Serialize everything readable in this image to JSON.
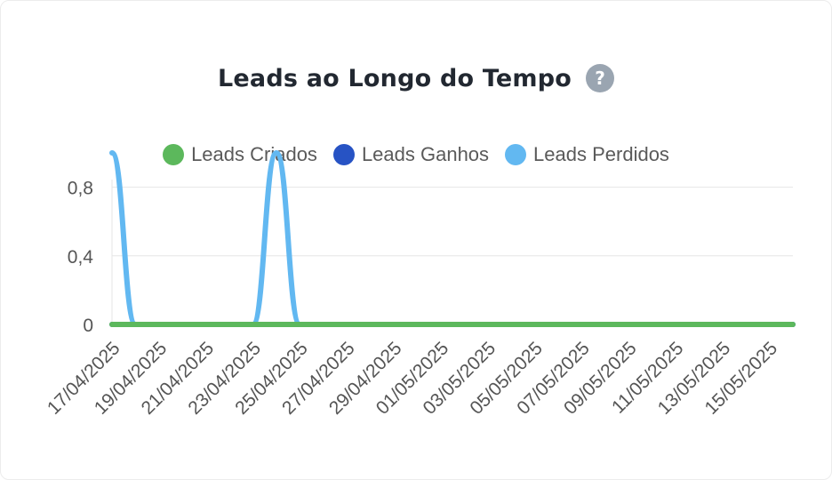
{
  "header": {
    "title": "Leads ao Longo do Tempo",
    "help_icon_label": "?"
  },
  "colors": {
    "leads_criados": "#5cb85c",
    "leads_ganhos": "#2753c4",
    "leads_perdidos": "#62b8f1",
    "grid": "#e6e6e6",
    "axis_text": "#555555"
  },
  "chart_data": {
    "type": "line",
    "title": "Leads ao Longo do Tempo",
    "xlabel": "",
    "ylabel": "",
    "ylim": [
      0,
      1
    ],
    "yticks": [
      "0",
      "0,4",
      "0,8"
    ],
    "ytick_values": [
      0,
      0.4,
      0.8
    ],
    "xtick_labels": [
      "17/04/2025",
      "19/04/2025",
      "21/04/2025",
      "23/04/2025",
      "25/04/2025",
      "27/04/2025",
      "29/04/2025",
      "01/05/2025",
      "03/05/2025",
      "05/05/2025",
      "07/05/2025",
      "09/05/2025",
      "11/05/2025",
      "13/05/2025",
      "15/05/2025"
    ],
    "x_start": "17/04/2025",
    "x_days": 29,
    "legend_position": "top",
    "series": [
      {
        "name": "Leads Criados",
        "color": "#5cb85c",
        "values": [
          0,
          0,
          0,
          0,
          0,
          0,
          0,
          0,
          0,
          0,
          0,
          0,
          0,
          0,
          0,
          0,
          0,
          0,
          0,
          0,
          0,
          0,
          0,
          0,
          0,
          0,
          0,
          0,
          0,
          0
        ]
      },
      {
        "name": "Leads Ganhos",
        "color": "#2753c4",
        "values": [
          0,
          0,
          0,
          0,
          0,
          0,
          0,
          0,
          0,
          0,
          0,
          0,
          0,
          0,
          0,
          0,
          0,
          0,
          0,
          0,
          0,
          0,
          0,
          0,
          0,
          0,
          0,
          0,
          0,
          0
        ]
      },
      {
        "name": "Leads Perdidos",
        "color": "#62b8f1",
        "values": [
          1,
          0,
          0,
          0,
          0,
          0,
          0,
          1,
          0,
          0,
          0,
          0,
          0,
          0,
          0,
          0,
          0,
          0,
          0,
          0,
          0,
          0,
          0,
          0,
          0,
          0,
          0,
          0,
          0,
          0
        ]
      }
    ]
  }
}
